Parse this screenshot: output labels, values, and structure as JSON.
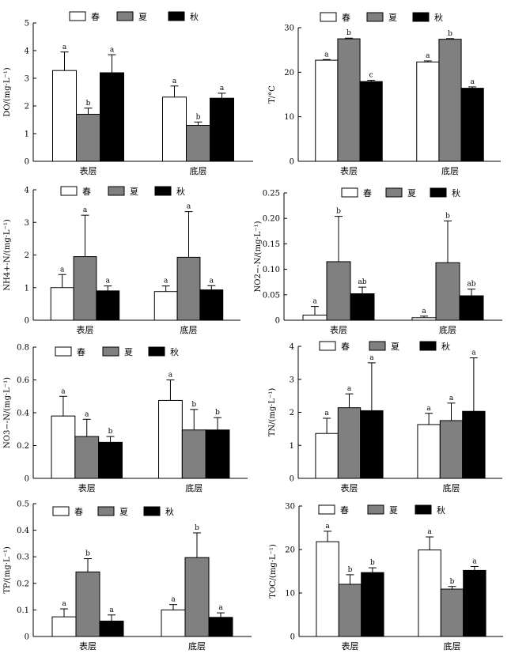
{
  "legend": {
    "spring": "春",
    "summer": "夏",
    "autumn": "秋"
  },
  "colors": {
    "spring": "#ffffff",
    "summer": "#808080",
    "autumn": "#000000",
    "stroke": "#000000"
  },
  "chart_data": [
    {
      "type": "bar",
      "id": "do",
      "ylabel": "DO/(mg·L⁻¹)",
      "categories": [
        "表层",
        "底层"
      ],
      "ylim": [
        0,
        5
      ],
      "yticks": [
        "0",
        "1",
        "2",
        "3",
        "4",
        "5"
      ],
      "series": [
        {
          "name": "春",
          "values": [
            3.28,
            2.32
          ],
          "errors": [
            0.67,
            0.4
          ],
          "labels": [
            "a",
            "a"
          ]
        },
        {
          "name": "夏",
          "values": [
            1.7,
            1.3
          ],
          "errors": [
            0.22,
            0.12
          ],
          "labels": [
            "b",
            "b"
          ]
        },
        {
          "name": "秋",
          "values": [
            3.2,
            2.28
          ],
          "errors": [
            0.65,
            0.18
          ],
          "labels": [
            "a",
            "a"
          ]
        }
      ]
    },
    {
      "type": "bar",
      "id": "t",
      "ylabel": "T/°C",
      "categories": [
        "表层",
        "底层"
      ],
      "ylim": [
        0,
        30
      ],
      "yticks": [
        "0",
        "10",
        "20",
        "30"
      ],
      "series": [
        {
          "name": "春",
          "values": [
            22.7,
            22.3
          ],
          "errors": [
            0.15,
            0.25
          ],
          "labels": [
            "a",
            "a"
          ]
        },
        {
          "name": "夏",
          "values": [
            27.5,
            27.4
          ],
          "errors": [
            0.15,
            0.15
          ],
          "labels": [
            "b",
            "b"
          ]
        },
        {
          "name": "秋",
          "values": [
            17.9,
            16.4
          ],
          "errors": [
            0.3,
            0.3
          ],
          "labels": [
            "c",
            "a"
          ]
        }
      ]
    },
    {
      "type": "bar",
      "id": "nh4",
      "ylabel": "NH4+-N/(mg·L⁻¹)",
      "categories": [
        "表层",
        "底层"
      ],
      "ylim": [
        0,
        4
      ],
      "yticks": [
        "0",
        "1",
        "2",
        "3",
        "4"
      ],
      "series": [
        {
          "name": "春",
          "values": [
            1.0,
            0.88
          ],
          "errors": [
            0.4,
            0.17
          ],
          "labels": [
            "a",
            "a"
          ]
        },
        {
          "name": "夏",
          "values": [
            1.95,
            1.93
          ],
          "errors": [
            1.27,
            1.4
          ],
          "labels": [
            "a",
            "a"
          ]
        },
        {
          "name": "秋",
          "values": [
            0.9,
            0.93
          ],
          "errors": [
            0.15,
            0.13
          ],
          "labels": [
            "a",
            "a"
          ]
        }
      ]
    },
    {
      "type": "bar",
      "id": "no2",
      "ylabel": "NO2−-N/(mg·L⁻¹)",
      "categories": [
        "表层",
        "底层"
      ],
      "ylim": [
        0,
        0.25
      ],
      "yticks": [
        "0",
        "0.05",
        "0.10",
        "0.15",
        "0.20",
        "0.25"
      ],
      "series": [
        {
          "name": "春",
          "values": [
            0.01,
            0.005
          ],
          "errors": [
            0.017,
            0.003
          ],
          "labels": [
            "a",
            "a"
          ]
        },
        {
          "name": "夏",
          "values": [
            0.115,
            0.113
          ],
          "errors": [
            0.089,
            0.082
          ],
          "labels": [
            "b",
            "b"
          ]
        },
        {
          "name": "秋",
          "values": [
            0.052,
            0.048
          ],
          "errors": [
            0.013,
            0.013
          ],
          "labels": [
            "ab",
            "ab"
          ]
        }
      ]
    },
    {
      "type": "bar",
      "id": "no3",
      "ylabel": "NO3−-N/(mg·L⁻¹)",
      "categories": [
        "表层",
        "底层"
      ],
      "ylim": [
        0,
        0.8
      ],
      "yticks": [
        "0",
        "0.2",
        "0.4",
        "0.6",
        "0.8"
      ],
      "series": [
        {
          "name": "春",
          "values": [
            0.38,
            0.475
          ],
          "errors": [
            0.12,
            0.125
          ],
          "labels": [
            "a",
            "a"
          ]
        },
        {
          "name": "夏",
          "values": [
            0.255,
            0.295
          ],
          "errors": [
            0.105,
            0.125
          ],
          "labels": [
            "a",
            "b"
          ]
        },
        {
          "name": "秋",
          "values": [
            0.22,
            0.295
          ],
          "errors": [
            0.035,
            0.075
          ],
          "labels": [
            "b",
            "b"
          ]
        }
      ]
    },
    {
      "type": "bar",
      "id": "tn",
      "ylabel": "TN/(mg·L⁻¹)",
      "categories": [
        "表层",
        "底层"
      ],
      "ylim": [
        0,
        4
      ],
      "yticks": [
        "0",
        "1",
        "2",
        "3",
        "4"
      ],
      "series": [
        {
          "name": "春",
          "values": [
            1.36,
            1.63
          ],
          "errors": [
            0.46,
            0.34
          ],
          "labels": [
            "a",
            "a"
          ]
        },
        {
          "name": "夏",
          "values": [
            2.14,
            1.75
          ],
          "errors": [
            0.42,
            0.53
          ],
          "labels": [
            "a",
            "a"
          ]
        },
        {
          "name": "秋",
          "values": [
            2.05,
            2.03
          ],
          "errors": [
            1.45,
            1.62
          ],
          "labels": [
            "a",
            "a"
          ]
        }
      ]
    },
    {
      "type": "bar",
      "id": "tp",
      "ylabel": "TP/(mg·L⁻¹)",
      "categories": [
        "表层",
        "底层"
      ],
      "ylim": [
        0,
        0.5
      ],
      "yticks": [
        "0",
        "0.1",
        "0.2",
        "0.3",
        "0.4",
        "0.5"
      ],
      "series": [
        {
          "name": "春",
          "values": [
            0.074,
            0.1
          ],
          "errors": [
            0.03,
            0.02
          ],
          "labels": [
            "a",
            "a"
          ]
        },
        {
          "name": "夏",
          "values": [
            0.243,
            0.297
          ],
          "errors": [
            0.05,
            0.093
          ],
          "labels": [
            "b",
            "b"
          ]
        },
        {
          "name": "秋",
          "values": [
            0.058,
            0.072
          ],
          "errors": [
            0.023,
            0.017
          ],
          "labels": [
            "a",
            "a"
          ]
        }
      ]
    },
    {
      "type": "bar",
      "id": "toc",
      "ylabel": "TOC/(mg·L⁻¹)",
      "categories": [
        "表层",
        "底层"
      ],
      "ylim": [
        0,
        30
      ],
      "yticks": [
        "0",
        "10",
        "20",
        "30"
      ],
      "series": [
        {
          "name": "春",
          "values": [
            21.8,
            19.9
          ],
          "errors": [
            2.4,
            3.0
          ],
          "labels": [
            "a",
            "a"
          ]
        },
        {
          "name": "夏",
          "values": [
            12.0,
            10.9
          ],
          "errors": [
            2.2,
            0.6
          ],
          "labels": [
            "b",
            "b"
          ]
        },
        {
          "name": "秋",
          "values": [
            14.7,
            15.2
          ],
          "errors": [
            1.1,
            0.9
          ],
          "labels": [
            "b",
            "a"
          ]
        }
      ]
    }
  ]
}
